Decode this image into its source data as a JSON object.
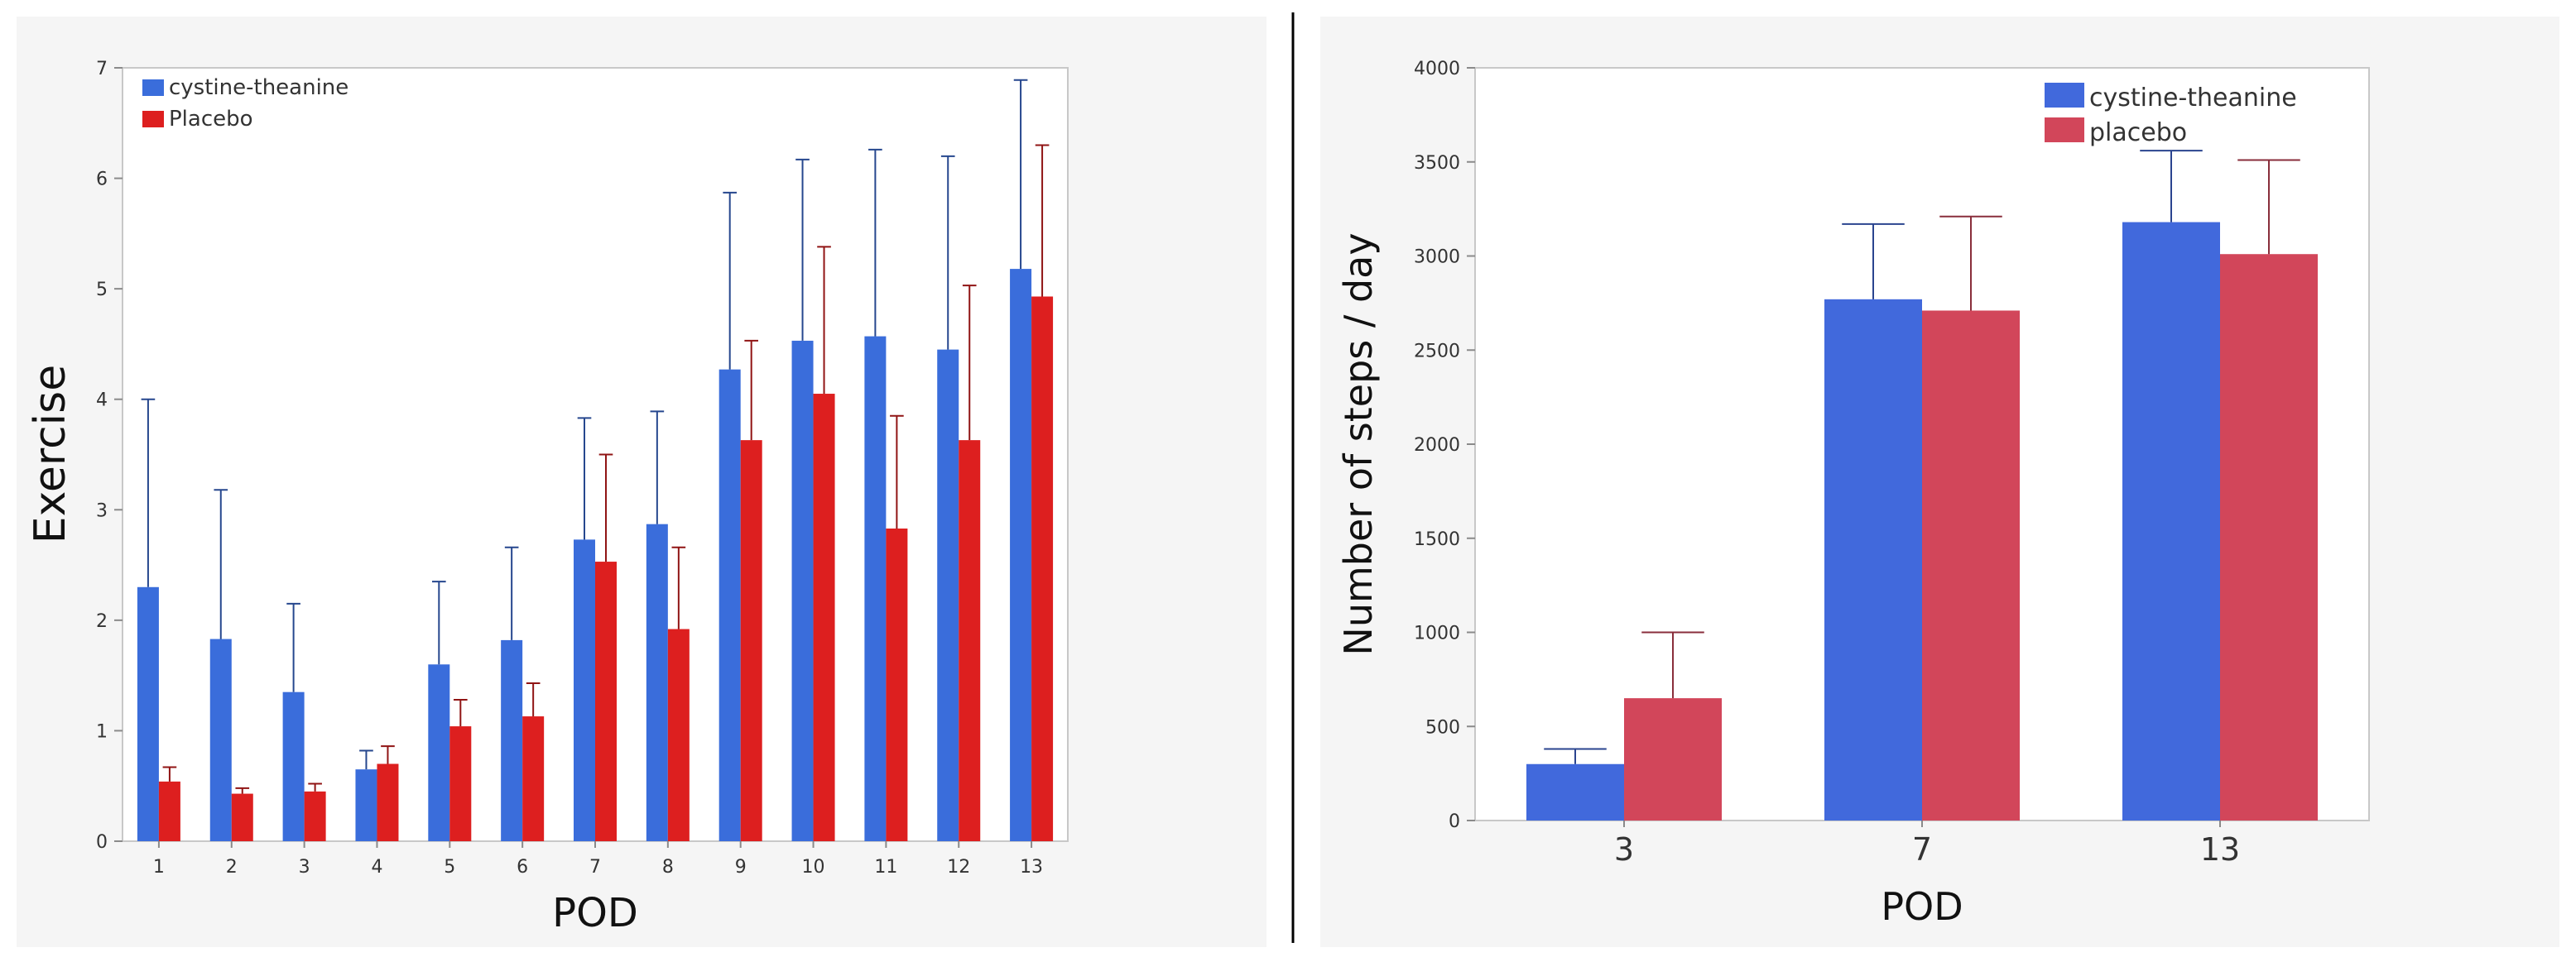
{
  "chart_data": [
    {
      "type": "bar",
      "title": "",
      "xlabel": "POD",
      "ylabel": "Exercise",
      "ylim": [
        0,
        7
      ],
      "yticks": [
        0,
        1,
        2,
        3,
        4,
        5,
        6,
        7
      ],
      "categories": [
        "1",
        "2",
        "3",
        "4",
        "5",
        "6",
        "7",
        "8",
        "9",
        "10",
        "11",
        "12",
        "13"
      ],
      "legend_position": "top-left",
      "series": [
        {
          "name": "cystine-theanine",
          "color": "#3a6ddb",
          "values": [
            2.3,
            1.83,
            1.35,
            0.65,
            1.6,
            1.82,
            2.73,
            2.87,
            4.27,
            4.53,
            4.57,
            4.45,
            5.18
          ],
          "error_upper": [
            4.0,
            3.18,
            2.15,
            0.82,
            2.35,
            2.66,
            3.83,
            3.89,
            5.87,
            6.17,
            6.26,
            6.2,
            6.89
          ]
        },
        {
          "name": "Placebo",
          "color": "#dd1f1f",
          "values": [
            0.54,
            0.43,
            0.45,
            0.7,
            1.04,
            1.13,
            2.53,
            1.92,
            3.63,
            4.05,
            2.83,
            3.63,
            4.93
          ],
          "error_upper": [
            0.67,
            0.48,
            0.52,
            0.86,
            1.28,
            1.43,
            3.5,
            2.66,
            4.53,
            5.38,
            3.85,
            5.03,
            6.3
          ]
        }
      ]
    },
    {
      "type": "bar",
      "title": "",
      "xlabel": "POD",
      "ylabel": "Number of steps / day",
      "ylim": [
        0,
        4000
      ],
      "yticks": [
        0,
        500,
        1000,
        1500,
        2000,
        2500,
        3000,
        3500,
        4000
      ],
      "categories": [
        "3",
        "7",
        "13"
      ],
      "legend_position": "top-right",
      "series": [
        {
          "name": "cystine-theanine",
          "color": "#4169dc",
          "values": [
            300,
            2770,
            3180
          ],
          "error_upper": [
            380,
            3170,
            3560
          ]
        },
        {
          "name": "placebo",
          "color": "#d2465a",
          "values": [
            650,
            2710,
            3010
          ],
          "error_upper": [
            1000,
            3210,
            3510
          ]
        }
      ]
    }
  ]
}
